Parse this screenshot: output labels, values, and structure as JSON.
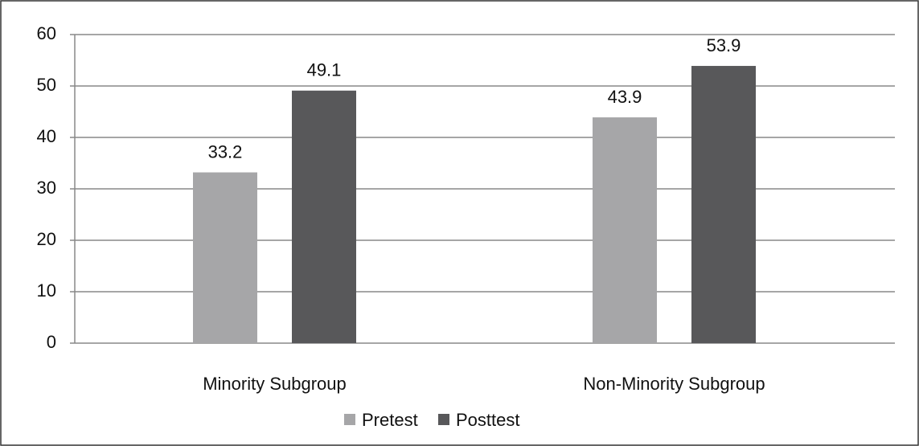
{
  "chart_data": {
    "type": "bar",
    "categories": [
      "Minority Subgroup",
      "Non-Minority Subgroup"
    ],
    "series": [
      {
        "name": "Pretest",
        "color": "#a6a6a8",
        "values": [
          33.2,
          43.9
        ]
      },
      {
        "name": "Posttest",
        "color": "#58585a",
        "values": [
          49.1,
          53.9
        ]
      }
    ],
    "ylim": [
      0,
      60
    ],
    "yticks": [
      0,
      10,
      20,
      30,
      40,
      50,
      60
    ],
    "grid": true,
    "legend": "bottom"
  }
}
